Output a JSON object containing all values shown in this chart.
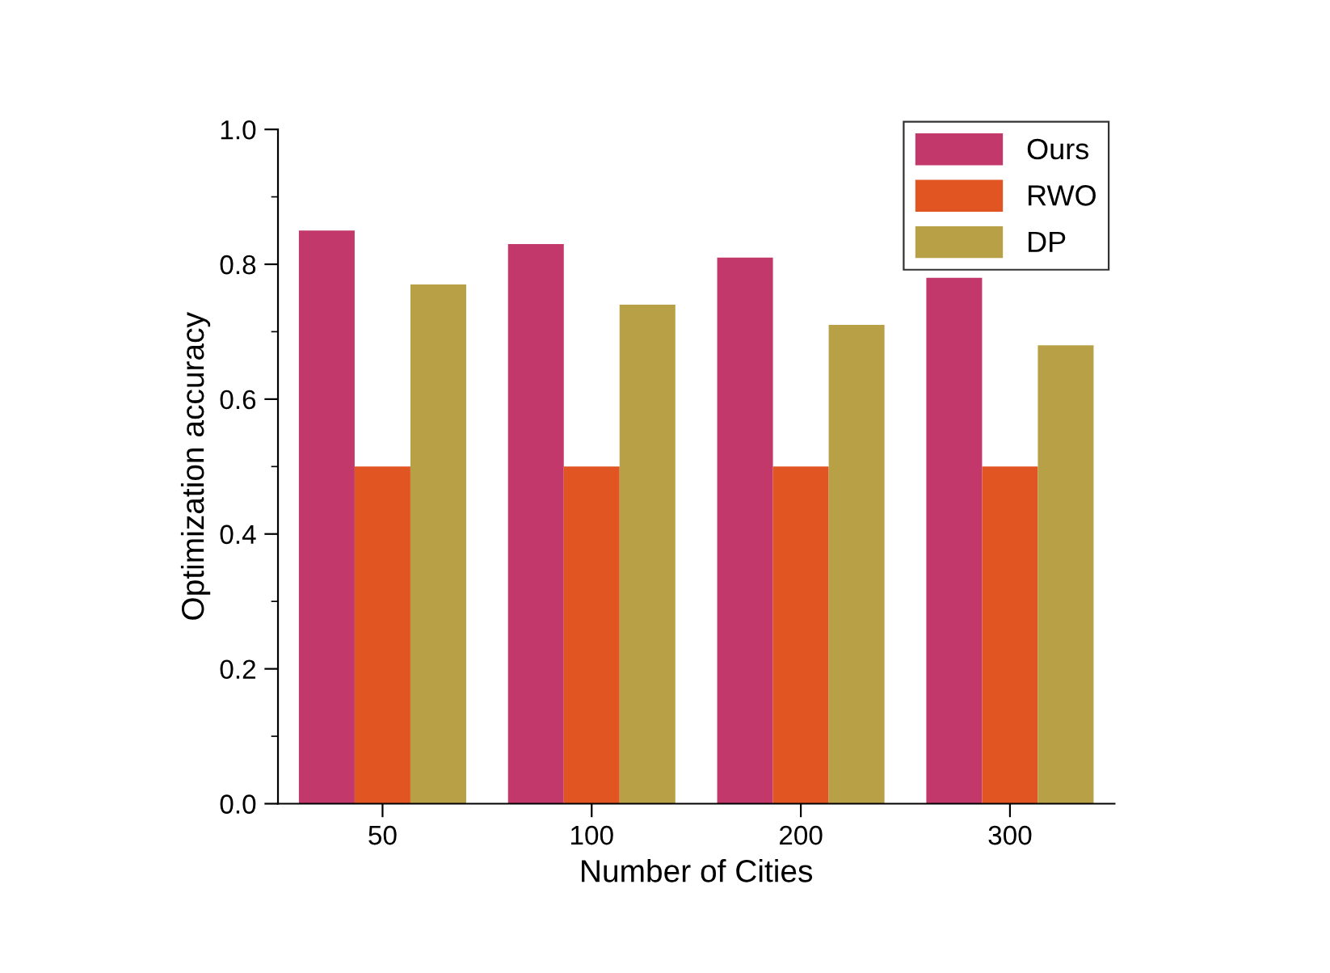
{
  "chart_data": {
    "type": "bar",
    "xlabel": "Number of Cities",
    "ylabel": "Optimization accuracy",
    "categories": [
      "50",
      "100",
      "200",
      "300"
    ],
    "series": [
      {
        "name": "Ours",
        "color": "#c2386a",
        "values": [
          0.85,
          0.83,
          0.81,
          0.78
        ]
      },
      {
        "name": "RWO",
        "color": "#e05522",
        "values": [
          0.5,
          0.5,
          0.5,
          0.5
        ]
      },
      {
        "name": "DP",
        "color": "#b8a047",
        "values": [
          0.77,
          0.74,
          0.71,
          0.68
        ]
      }
    ],
    "ylim": [
      0,
      1
    ],
    "yticks": [
      {
        "value": 0,
        "label": "0.0"
      },
      0.2,
      0.4,
      0.6,
      0.8,
      {
        "value": 1,
        "label": "1.0"
      }
    ],
    "grid": false,
    "legend": "top right"
  }
}
